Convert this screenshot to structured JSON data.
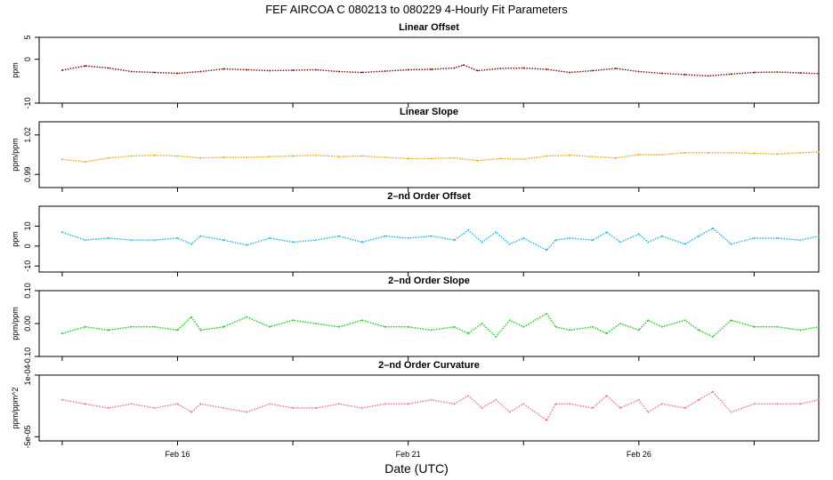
{
  "title": "FEF   AIRCOA C   080213 to 080229   4-Hourly Fit Parameters",
  "xlabel": "Date (UTC)",
  "x_ticks": [
    {
      "label": "Feb 16",
      "day": 16
    },
    {
      "label": "Feb 21",
      "day": 21
    },
    {
      "label": "Feb 26",
      "day": 26
    }
  ],
  "x_range_days": [
    13.0,
    29.9
  ],
  "colors": {
    "linear_offset": "#8b0000",
    "linear_slope": "#ffa500",
    "second_offset": "#00bfff",
    "second_slope": "#00dd00",
    "second_curvature": "#ff6a8a"
  },
  "chart_data": [
    {
      "type": "line",
      "title": "Linear Offset",
      "ylabel": "ppm",
      "ylim": [
        -10,
        5
      ],
      "yticks": [
        "5",
        "0",
        "-10"
      ],
      "ytick_values": [
        5,
        0,
        -10
      ],
      "series": [
        {
          "color": "#8b0000",
          "x": [
            13.5,
            14.0,
            14.5,
            15.0,
            15.5,
            16.0,
            16.5,
            17.0,
            17.5,
            18.0,
            18.5,
            19.0,
            19.5,
            20.0,
            20.5,
            21.0,
            21.5,
            22.0,
            22.2,
            22.5,
            23.0,
            23.5,
            24.0,
            24.5,
            25.0,
            25.5,
            26.0,
            26.5,
            27.0,
            27.5,
            28.0,
            28.5,
            29.0,
            29.5,
            29.9
          ],
          "values": [
            -2.5,
            -1.5,
            -2.0,
            -2.8,
            -3.0,
            -3.2,
            -2.8,
            -2.2,
            -2.4,
            -2.6,
            -2.5,
            -2.4,
            -2.8,
            -3.0,
            -2.7,
            -2.4,
            -2.3,
            -2.0,
            -1.3,
            -2.6,
            -2.1,
            -2.0,
            -2.3,
            -3.0,
            -2.6,
            -2.1,
            -2.8,
            -3.2,
            -3.5,
            -3.8,
            -3.4,
            -3.0,
            -2.9,
            -3.1,
            -3.3
          ]
        }
      ]
    },
    {
      "type": "line",
      "title": "Linear Slope",
      "ylabel": "ppm/ppm",
      "ylim": [
        0.98,
        1.03
      ],
      "yticks": [
        "1.02",
        "0.99"
      ],
      "ytick_values": [
        1.02,
        0.99
      ],
      "series": [
        {
          "color": "#ffa500",
          "x": [
            13.5,
            14.0,
            14.5,
            15.0,
            15.5,
            16.0,
            16.5,
            17.0,
            17.5,
            18.0,
            18.5,
            19.0,
            19.5,
            20.0,
            20.5,
            21.0,
            21.5,
            22.0,
            22.5,
            23.0,
            23.5,
            24.0,
            24.5,
            25.0,
            25.5,
            26.0,
            26.5,
            27.0,
            27.5,
            28.0,
            28.5,
            29.0,
            29.5,
            29.9
          ],
          "values": [
            1.0015,
            0.9995,
            1.0025,
            1.004,
            1.0045,
            1.004,
            1.0025,
            1.003,
            1.003,
            1.0035,
            1.004,
            1.0045,
            1.0035,
            1.004,
            1.003,
            1.002,
            1.002,
            1.0025,
            1.0005,
            1.002,
            1.0015,
            1.004,
            1.0045,
            1.0035,
            1.0025,
            1.005,
            1.005,
            1.0065,
            1.0065,
            1.0065,
            1.006,
            1.0055,
            1.0065,
            1.007
          ]
        }
      ]
    },
    {
      "type": "line",
      "title": "2–nd Order Offset",
      "ylabel": "ppm",
      "ylim": [
        -13,
        20
      ],
      "yticks": [
        "10",
        "0",
        "-10"
      ],
      "ytick_values": [
        10,
        0,
        -10
      ],
      "series": [
        {
          "color": "#00bfff",
          "x": [
            13.5,
            14.0,
            14.5,
            15.0,
            15.5,
            16.0,
            16.3,
            16.5,
            17.0,
            17.5,
            18.0,
            18.5,
            19.0,
            19.5,
            20.0,
            20.5,
            21.0,
            21.5,
            22.0,
            22.3,
            22.6,
            22.9,
            23.2,
            23.5,
            24.0,
            24.2,
            24.5,
            25.0,
            25.3,
            25.6,
            26.0,
            26.2,
            26.5,
            27.0,
            27.3,
            27.6,
            28.0,
            28.5,
            29.0,
            29.5,
            29.9
          ],
          "values": [
            7.0,
            3.0,
            4.0,
            3.0,
            3.0,
            4.0,
            1.0,
            5.0,
            3.0,
            0.5,
            4.0,
            2.0,
            3.0,
            5.0,
            2.0,
            5.0,
            4.0,
            5.0,
            3.0,
            8.0,
            2.0,
            7.0,
            1.0,
            4.0,
            -2.0,
            3.0,
            4.0,
            3.0,
            7.0,
            2.0,
            6.0,
            2.0,
            5.0,
            1.0,
            5.0,
            9.0,
            1.0,
            4.0,
            4.0,
            3.0,
            5.0
          ]
        }
      ]
    },
    {
      "type": "line",
      "title": "2–nd Order Slope",
      "ylabel": "ppm/ppm",
      "ylim": [
        -0.1,
        0.1
      ],
      "yticks": [
        "0.10",
        "0.00",
        "-0.10"
      ],
      "ytick_values": [
        0.1,
        0.0,
        -0.1
      ],
      "series": [
        {
          "color": "#00dd00",
          "x": [
            13.5,
            14.0,
            14.5,
            15.0,
            15.5,
            16.0,
            16.3,
            16.5,
            17.0,
            17.5,
            18.0,
            18.5,
            19.0,
            19.5,
            20.0,
            20.5,
            21.0,
            21.5,
            22.0,
            22.3,
            22.6,
            22.9,
            23.2,
            23.5,
            24.0,
            24.2,
            24.5,
            25.0,
            25.3,
            25.6,
            26.0,
            26.2,
            26.5,
            27.0,
            27.3,
            27.6,
            28.0,
            28.5,
            29.0,
            29.5,
            29.9
          ],
          "values": [
            -0.03,
            -0.01,
            -0.02,
            -0.01,
            -0.01,
            -0.02,
            0.02,
            -0.02,
            -0.01,
            0.02,
            -0.01,
            0.01,
            0.0,
            -0.01,
            0.01,
            -0.01,
            -0.01,
            -0.02,
            -0.01,
            -0.03,
            0.0,
            -0.04,
            0.01,
            -0.01,
            0.03,
            -0.01,
            -0.02,
            -0.01,
            -0.03,
            0.0,
            -0.02,
            0.01,
            -0.01,
            0.01,
            -0.02,
            -0.04,
            0.01,
            -0.01,
            -0.01,
            -0.02,
            -0.01
          ]
        }
      ]
    },
    {
      "type": "line",
      "title": "2–nd Order Curvature",
      "ylabel": "ppm/ppm^2",
      "ylim": [
        -6e-05,
        0.0001
      ],
      "yticks": [
        "1e-04",
        "-5e-05"
      ],
      "ytick_values": [
        0.0001,
        -5e-05
      ],
      "series": [
        {
          "color": "#ff6a8a",
          "x": [
            13.5,
            14.0,
            14.5,
            15.0,
            15.5,
            16.0,
            16.3,
            16.5,
            17.0,
            17.5,
            18.0,
            18.5,
            19.0,
            19.5,
            20.0,
            20.5,
            21.0,
            21.5,
            22.0,
            22.3,
            22.6,
            22.9,
            23.2,
            23.5,
            24.0,
            24.2,
            24.5,
            25.0,
            25.3,
            25.6,
            26.0,
            26.2,
            26.5,
            27.0,
            27.3,
            27.6,
            28.0,
            28.5,
            29.0,
            29.5,
            29.9
          ],
          "values": [
            4e-05,
            3e-05,
            2e-05,
            3e-05,
            2e-05,
            3e-05,
            1e-05,
            3e-05,
            2e-05,
            1e-05,
            3e-05,
            2e-05,
            2e-05,
            3e-05,
            2e-05,
            3e-05,
            3e-05,
            4e-05,
            3e-05,
            5e-05,
            2e-05,
            4e-05,
            1e-05,
            3e-05,
            -1e-05,
            3e-05,
            3e-05,
            2e-05,
            5e-05,
            2e-05,
            4e-05,
            1e-05,
            3e-05,
            2e-05,
            4e-05,
            6e-05,
            1e-05,
            3e-05,
            3e-05,
            3e-05,
            4e-05
          ]
        }
      ]
    }
  ]
}
